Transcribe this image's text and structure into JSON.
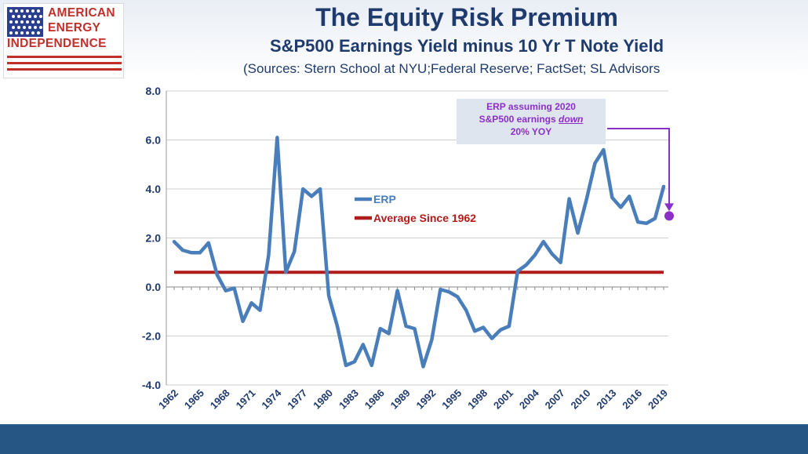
{
  "header": {
    "title": "The Equity Risk Premium",
    "subtitle": "S&P500 Earnings Yield minus 10 Yr T Note Yield",
    "sources": "(Sources: Stern School at NYU;Federal Reserve; FactSet; SL Advisors"
  },
  "logo": {
    "line1": "AMERICAN",
    "line2": "ENERGY",
    "line3": "INDEPENDENCE"
  },
  "colors": {
    "erp": "#4a7ebb",
    "average": "#b01c1c",
    "annotation": "#8b2fc9",
    "title": "#1f3b6e",
    "footer": "#265784"
  },
  "annotation": {
    "line1": "ERP assuming 2020",
    "line2_prefix": "S&P500 earnings ",
    "line2_emph": "down",
    "line3": "20% YOY"
  },
  "chart_data": {
    "type": "line",
    "ylim": [
      -4.0,
      8.0
    ],
    "yticks": [
      "8.0",
      "6.0",
      "4.0",
      "2.0",
      "0.0",
      "-2.0",
      "-4.0"
    ],
    "ytick_values": [
      8,
      6,
      4,
      2,
      0,
      -2,
      -4
    ],
    "xlim": [
      1962,
      2019
    ],
    "xticks": [
      "1962",
      "1965",
      "1968",
      "1971",
      "1974",
      "1977",
      "1980",
      "1983",
      "1986",
      "1989",
      "1992",
      "1995",
      "1998",
      "2001",
      "2004",
      "2007",
      "2010",
      "2013",
      "2016",
      "2019"
    ],
    "xtick_values": [
      1962,
      1965,
      1968,
      1971,
      1974,
      1977,
      1980,
      1983,
      1986,
      1989,
      1992,
      1995,
      1998,
      2001,
      2004,
      2007,
      2010,
      2013,
      2016,
      2019
    ],
    "legend_position": "center",
    "series": [
      {
        "name": "ERP",
        "x": [
          1962,
          1963,
          1964,
          1965,
          1966,
          1967,
          1968,
          1969,
          1970,
          1971,
          1972,
          1973,
          1974,
          1975,
          1976,
          1977,
          1978,
          1979,
          1980,
          1981,
          1982,
          1983,
          1984,
          1985,
          1986,
          1987,
          1988,
          1989,
          1990,
          1991,
          1992,
          1993,
          1994,
          1995,
          1996,
          1997,
          1998,
          1999,
          2000,
          2001,
          2002,
          2003,
          2004,
          2005,
          2006,
          2007,
          2008,
          2009,
          2010,
          2011,
          2012,
          2013,
          2014,
          2015,
          2016,
          2017,
          2018,
          2019
        ],
        "values": [
          1.85,
          1.5,
          1.4,
          1.4,
          1.8,
          0.5,
          -0.15,
          -0.05,
          -1.4,
          -0.65,
          -0.95,
          1.3,
          6.1,
          0.6,
          1.45,
          4.0,
          3.7,
          4.0,
          -0.35,
          -1.6,
          -3.2,
          -3.05,
          -2.35,
          -3.2,
          -1.7,
          -1.9,
          -0.15,
          -1.6,
          -1.7,
          -3.25,
          -2.15,
          -0.1,
          -0.2,
          -0.4,
          -0.95,
          -1.8,
          -1.65,
          -2.1,
          -1.75,
          -1.6,
          0.65,
          0.9,
          1.3,
          1.85,
          1.35,
          1.0,
          3.6,
          2.2,
          3.55,
          5.05,
          5.6,
          3.65,
          3.25,
          3.7,
          2.65,
          2.6,
          2.8,
          4.1
        ]
      },
      {
        "name": "Average Since 1962",
        "x": [
          1962,
          2019
        ],
        "values": [
          0.6,
          0.6
        ]
      }
    ],
    "projection": {
      "x": 2020,
      "value": 2.9
    }
  }
}
